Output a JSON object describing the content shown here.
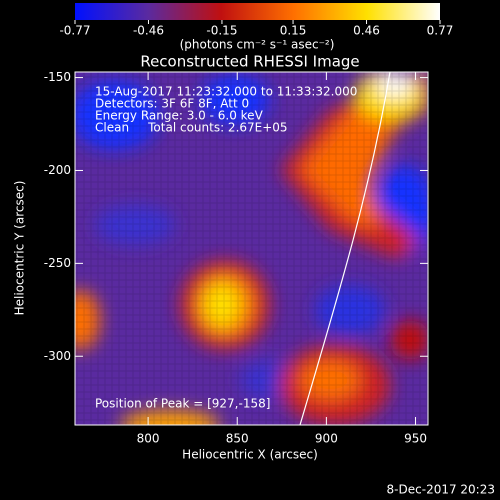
{
  "chart_data": {
    "type": "image",
    "title": "Reconstructed RHESSI Image",
    "xlabel": "Heliocentric X (arcsec)",
    "ylabel": "Heliocentric Y (arcsec)",
    "xlim": [
      759,
      957
    ],
    "xticks": [
      800,
      850,
      900,
      950
    ],
    "ylim": [
      -337,
      -147
    ],
    "yticks": [
      -150,
      -200,
      -250,
      -300
    ],
    "colorbar": {
      "label": "(photons cm⁻² s⁻¹ asec⁻²)",
      "clim": [
        -0.77,
        0.77
      ],
      "ticks": [
        -0.77,
        -0.46,
        -0.15,
        0.15,
        0.46,
        0.77
      ],
      "colors": [
        "#0010ff",
        "#5a2aa0",
        "#c01010",
        "#ff7000",
        "#ffe000",
        "#ffffff"
      ]
    },
    "annotations": [
      "15-Aug-2017 11:23:32.000 to 11:33:32.000",
      "Detectors: 3F 6F 8F, Att 0",
      "Energy Range: 3.0 - 6.0 keV",
      "Clean     Total counts: 2.67E+05"
    ],
    "peak_note": "Position of Peak = [927,-158]",
    "footer": "8-Dec-2017 20:23"
  }
}
